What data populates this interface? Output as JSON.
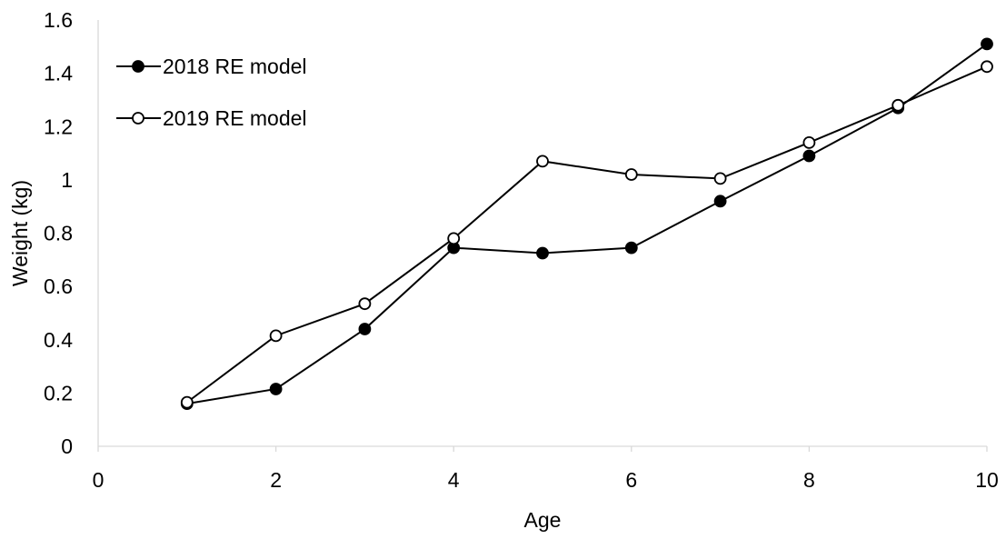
{
  "chart_data": {
    "type": "line",
    "xlabel": "Age",
    "ylabel": "Weight (kg)",
    "xlim": [
      0,
      10
    ],
    "ylim": [
      0,
      1.6
    ],
    "x_ticks": [
      0,
      2,
      4,
      6,
      8,
      10
    ],
    "x_tick_labels": [
      "0",
      "2",
      "4",
      "6",
      "8",
      "10"
    ],
    "y_ticks": [
      0,
      0.2,
      0.4,
      0.6,
      0.8,
      1.0,
      1.2,
      1.4,
      1.6
    ],
    "y_tick_labels": [
      "0",
      "0.2",
      "0.4",
      "0.6",
      "0.8",
      "1",
      "1.2",
      "1.4",
      "1.6"
    ],
    "grid": false,
    "legend_position": "top-left",
    "x": [
      1,
      2,
      3,
      4,
      5,
      6,
      7,
      8,
      9,
      10
    ],
    "series": [
      {
        "name": "2018 RE model",
        "marker": "filled-circle",
        "color": "#000000",
        "values": [
          0.16,
          0.215,
          0.44,
          0.745,
          0.725,
          0.745,
          0.92,
          1.09,
          1.27,
          1.51
        ]
      },
      {
        "name": "2019 RE model",
        "marker": "open-circle",
        "color": "#000000",
        "values": [
          0.165,
          0.415,
          0.535,
          0.78,
          1.07,
          1.02,
          1.005,
          1.14,
          1.28,
          1.425
        ]
      }
    ]
  }
}
